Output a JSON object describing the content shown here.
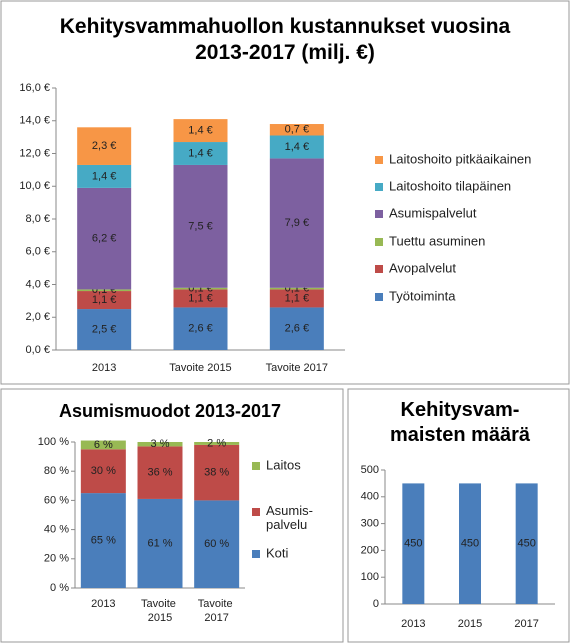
{
  "chart_data": [
    {
      "type": "bar",
      "stacked": true,
      "title": "Kehitysvammahuollon kustannukset vuosina 2013-2017 (milj. €)",
      "categories": [
        "2013",
        "Tavoite 2015",
        "Tavoite 2017"
      ],
      "series": [
        {
          "name": "Työtoiminta",
          "color": "#4a7ebb",
          "values": [
            2.5,
            2.6,
            2.6
          ],
          "value_labels": [
            "2,5 €",
            "2,6 €",
            "2,6 €"
          ]
        },
        {
          "name": "Avopalvelut",
          "color": "#be4b48",
          "values": [
            1.1,
            1.1,
            1.1
          ],
          "value_labels": [
            "1,1 €",
            "1,1 €",
            "1,1 €"
          ]
        },
        {
          "name": "Tuettu asuminen",
          "color": "#98b954",
          "values": [
            0.1,
            0.1,
            0.1
          ],
          "value_labels": [
            "0,1 €",
            "0,1 €",
            "0,1 €"
          ]
        },
        {
          "name": "Asumispalvelut",
          "color": "#7d60a0",
          "values": [
            6.2,
            7.5,
            7.9
          ],
          "value_labels": [
            "6,2 €",
            "7,5 €",
            "7,9 €"
          ]
        },
        {
          "name": "Laitoshoito tilapäinen",
          "color": "#46aac5",
          "values": [
            1.4,
            1.4,
            1.4
          ],
          "value_labels": [
            "1,4 €",
            "1,4 €",
            "1,4 €"
          ]
        },
        {
          "name": "Laitoshoito pitkäaikainen",
          "color": "#f79646",
          "values": [
            2.3,
            1.4,
            0.7
          ],
          "value_labels": [
            "2,3 €",
            "1,4 €",
            "0,7 €"
          ]
        }
      ],
      "ylim": [
        0,
        16
      ],
      "yticks": [
        {
          "value": 0,
          "label": "0,0 €"
        },
        {
          "value": 2,
          "label": "2,0 €"
        },
        {
          "value": 4,
          "label": "4,0 €"
        },
        {
          "value": 6,
          "label": "6,0 €"
        },
        {
          "value": 8,
          "label": "8,0 €"
        },
        {
          "value": 10,
          "label": "10,0 €"
        },
        {
          "value": 12,
          "label": "12,0 €"
        },
        {
          "value": 14,
          "label": "14,0 €"
        },
        {
          "value": 16,
          "label": "16,0 €"
        }
      ],
      "legend": "right",
      "grid": false
    },
    {
      "type": "bar",
      "stacked": true,
      "title": "Asumismuodot 2013-2017",
      "categories": [
        "2013",
        "Tavoite 2015",
        "Tavoite 2017"
      ],
      "series": [
        {
          "name": "Koti",
          "color": "#4a7ebb",
          "values": [
            65,
            61,
            60
          ],
          "value_labels": [
            "65 %",
            "61 %",
            "60 %"
          ]
        },
        {
          "name": "Asumis-palvelu",
          "color": "#be4b48",
          "values": [
            30,
            36,
            38
          ],
          "value_labels": [
            "30 %",
            "36 %",
            "38 %"
          ]
        },
        {
          "name": "Laitos",
          "color": "#98b954",
          "values": [
            6,
            3,
            2
          ],
          "value_labels": [
            "6 %",
            "3 %",
            "2 %"
          ]
        }
      ],
      "ylim": [
        0,
        100
      ],
      "yticks": [
        {
          "value": 0,
          "label": "0 %"
        },
        {
          "value": 20,
          "label": "20 %"
        },
        {
          "value": 40,
          "label": "40 %"
        },
        {
          "value": 60,
          "label": "60 %"
        },
        {
          "value": 80,
          "label": "80 %"
        },
        {
          "value": 100,
          "label": "100 %"
        }
      ],
      "legend": "right",
      "grid": false
    },
    {
      "type": "bar",
      "stacked": false,
      "title": "Kehitysvam-maisten määrä",
      "categories": [
        "2013",
        "2015",
        "2017"
      ],
      "values": [
        450,
        450,
        450
      ],
      "color": "#4a7ebb",
      "ylim": [
        0,
        500
      ],
      "yticks": [
        0,
        100,
        200,
        300,
        400,
        500
      ],
      "grid": false
    }
  ]
}
